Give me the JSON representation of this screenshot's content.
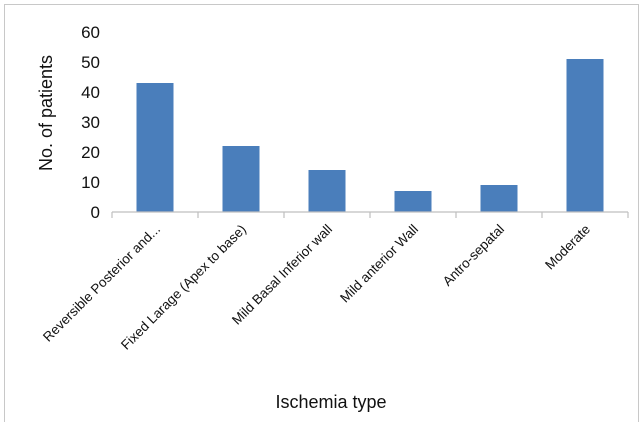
{
  "chart_data": {
    "type": "bar",
    "categories": [
      "Reversible Posterior and...",
      "Fixed Larage  (Apex to base)",
      "Mild Basal Inferior wall",
      "Mild anterior Wall",
      "Antro-sepatal",
      "Moderate"
    ],
    "values": [
      43,
      22,
      14,
      7,
      9,
      51
    ],
    "xlabel": "Ischemia type",
    "ylabel": "No. of patients",
    "ylim": [
      0,
      60
    ],
    "yticks": [
      0,
      10,
      20,
      30,
      40,
      50,
      60
    ],
    "grid": false,
    "legend": "none",
    "bar_color": "#4a7ebb"
  }
}
